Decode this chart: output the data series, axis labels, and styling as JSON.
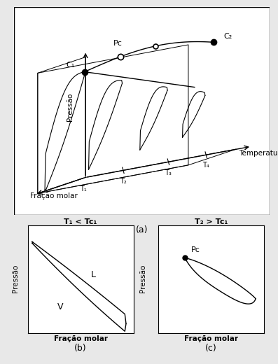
{
  "bg_color": "#e8e8e8",
  "panel_bg": "#ffffff",
  "title_a": "(a)",
  "title_b": "(b)",
  "title_c": "(c)",
  "label_pressao": "Pressão",
  "label_fracao": "Fração molar",
  "label_temperatura": "Temperatura",
  "label_b_title": "T₁ < Tc₁",
  "label_c_title": "T₂ > Tc₁",
  "label_L": "L",
  "label_V": "V",
  "label_Pc": "Pc",
  "label_C1": "C₁",
  "label_C2": "C₂",
  "label_T1": "T₁",
  "label_T2": "T₂",
  "label_T3": "T₃",
  "label_T4": "T₄"
}
